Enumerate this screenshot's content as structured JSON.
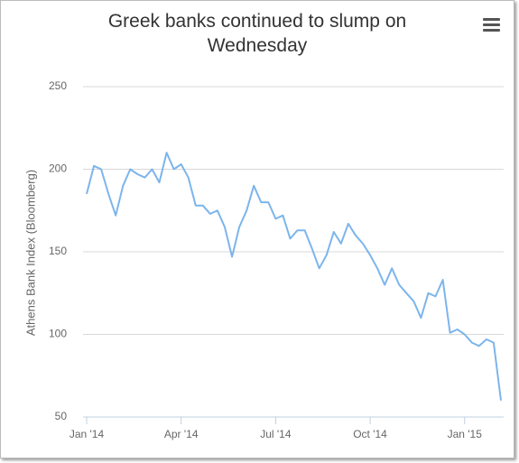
{
  "chart_data": {
    "type": "line",
    "title": "Greek banks continued to slump on Wednesday",
    "y_label": "Athens Bank Index (Bloomberg)",
    "categories": [
      "Jan '14",
      null,
      null,
      null,
      null,
      null,
      null,
      null,
      null,
      null,
      null,
      null,
      null,
      "Apr '14",
      null,
      null,
      null,
      null,
      null,
      null,
      null,
      null,
      null,
      null,
      null,
      null,
      "Jul '14",
      null,
      null,
      null,
      null,
      null,
      null,
      null,
      null,
      null,
      null,
      null,
      null,
      "Oct '14",
      null,
      null,
      null,
      null,
      null,
      null,
      null,
      null,
      null,
      null,
      null,
      null,
      "Jan '15",
      null,
      null,
      null,
      null,
      null
    ],
    "values": [
      185,
      202,
      200,
      185,
      172,
      190,
      200,
      197,
      195,
      200,
      192,
      210,
      200,
      203,
      195,
      178,
      178,
      173,
      175,
      165,
      147,
      165,
      175,
      190,
      180,
      180,
      170,
      172,
      158,
      163,
      163,
      152,
      140,
      148,
      162,
      155,
      167,
      160,
      155,
      148,
      140,
      130,
      140,
      130,
      125,
      120,
      110,
      125,
      123,
      133,
      101,
      103,
      100,
      95,
      93,
      97,
      95,
      60
    ],
    "color": "#7cb5ec",
    "ylim": [
      50,
      250
    ],
    "yticks": [
      50,
      100,
      150,
      200,
      250
    ],
    "grid": true
  }
}
